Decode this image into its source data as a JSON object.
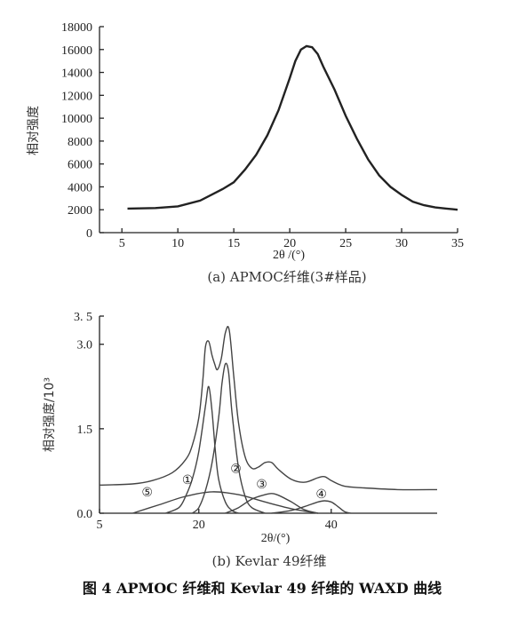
{
  "figure_caption": "图 4   APMOC 纤维和 Kevlar 49 纤维的 WAXD 曲线",
  "chart_data": [
    {
      "type": "line",
      "caption": "(a) APMOC纤维(3#样品)",
      "xlabel": "2θ /(°)",
      "ylabel": "相对强度",
      "xlim": [
        3,
        35
      ],
      "ylim": [
        0,
        18000
      ],
      "xticks": [
        5,
        10,
        15,
        20,
        25,
        30,
        35
      ],
      "yticks": [
        0,
        2000,
        4000,
        6000,
        8000,
        10000,
        12000,
        14000,
        16000,
        18000
      ],
      "grid": false,
      "series": [
        {
          "x": [
            5.5,
            8,
            10,
            12,
            14,
            15,
            16,
            17,
            18,
            19,
            20,
            20.5,
            21,
            21.5,
            22,
            22.5,
            23,
            24,
            25,
            26,
            27,
            28,
            29,
            30,
            31,
            32,
            33,
            34,
            35
          ],
          "y": [
            2100,
            2150,
            2300,
            2800,
            3800,
            4400,
            5500,
            6800,
            8500,
            10700,
            13500,
            15000,
            16000,
            16300,
            16200,
            15600,
            14500,
            12500,
            10200,
            8200,
            6400,
            5000,
            4000,
            3300,
            2700,
            2400,
            2200,
            2100,
            2000
          ]
        }
      ]
    },
    {
      "type": "line",
      "caption": "(b) Kevlar 49纤维",
      "xlabel": "2θ/(°)",
      "ylabel": "相对强度/10³",
      "xlim": [
        5,
        56
      ],
      "ylim": [
        0,
        3.5
      ],
      "xticks": [
        5,
        20,
        40
      ],
      "yticks": [
        0.0,
        1.5,
        3.0,
        3.5
      ],
      "ytick_labels": [
        "0.0",
        "1.5",
        "3.0",
        "3. 5"
      ],
      "grid": false,
      "series": [
        {
          "x": [
            5,
            10,
            13,
            16,
            18,
            19,
            20,
            20.6,
            21,
            21.5,
            22,
            22.4,
            22.8,
            23.4,
            24,
            24.6,
            25.3,
            26,
            27,
            28,
            29,
            30,
            31,
            32,
            34,
            36,
            38,
            39,
            40,
            42,
            45,
            50,
            56
          ],
          "y": [
            0.5,
            0.52,
            0.58,
            0.72,
            0.95,
            1.2,
            1.7,
            2.35,
            2.95,
            3.05,
            2.8,
            2.65,
            2.55,
            2.75,
            3.2,
            3.25,
            2.4,
            1.6,
            1.0,
            0.8,
            0.82,
            0.9,
            0.9,
            0.78,
            0.6,
            0.55,
            0.63,
            0.65,
            0.58,
            0.48,
            0.45,
            0.42,
            0.42
          ]
        },
        {
          "x": [
            15,
            17,
            18,
            19,
            20,
            21,
            21.5,
            22,
            22.5,
            23,
            24,
            25,
            26
          ],
          "y": [
            0.0,
            0.1,
            0.3,
            0.6,
            1.1,
            1.9,
            2.25,
            1.8,
            1.1,
            0.6,
            0.2,
            0.05,
            0.0
          ]
        },
        {
          "x": [
            19,
            20,
            21,
            22,
            23,
            23.5,
            24,
            24.5,
            25,
            26,
            27,
            28,
            30
          ],
          "y": [
            0.0,
            0.1,
            0.4,
            0.9,
            1.7,
            2.3,
            2.65,
            2.5,
            1.8,
            0.8,
            0.3,
            0.1,
            0.0
          ]
        },
        {
          "x": [
            10,
            14,
            18,
            22,
            26,
            30,
            34,
            38
          ],
          "y": [
            0.0,
            0.15,
            0.3,
            0.38,
            0.33,
            0.2,
            0.08,
            0.0
          ]
        },
        {
          "x": [
            24,
            26,
            28,
            30,
            31,
            32,
            34,
            36,
            38
          ],
          "y": [
            0.0,
            0.1,
            0.25,
            0.33,
            0.35,
            0.32,
            0.2,
            0.06,
            0.0
          ]
        },
        {
          "x": [
            31,
            34,
            36,
            38,
            39,
            40,
            41,
            42,
            43
          ],
          "y": [
            0.0,
            0.05,
            0.12,
            0.2,
            0.22,
            0.2,
            0.12,
            0.03,
            0.0
          ]
        }
      ],
      "peak_labels": [
        {
          "label": "①",
          "x": 18.3,
          "y": 0.6
        },
        {
          "label": "②",
          "x": 25.6,
          "y": 0.8
        },
        {
          "label": "③",
          "x": 29.5,
          "y": 0.52
        },
        {
          "label": "④",
          "x": 38.5,
          "y": 0.35
        },
        {
          "label": "⑤",
          "x": 12.2,
          "y": 0.38
        }
      ]
    }
  ]
}
